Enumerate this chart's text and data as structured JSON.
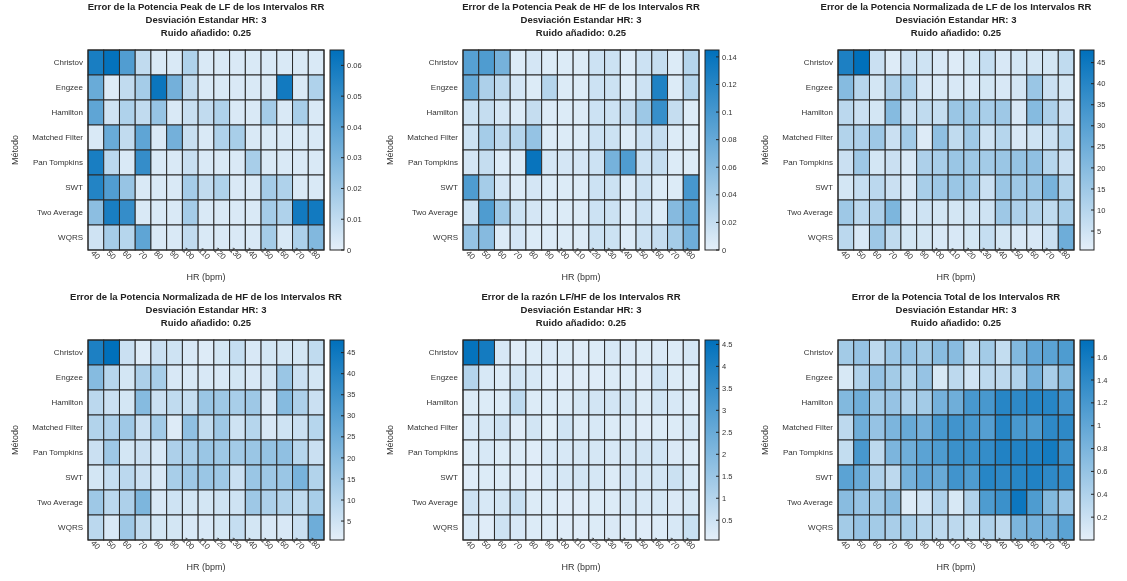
{
  "chart_data": [
    {
      "type": "heatmap",
      "title": "Error de la Potencia Peak de LF de los Intervalos RR",
      "subtitle": "Desviación Estandar HR: 3",
      "annotations": [
        "Ruido añadido: 0.25"
      ],
      "xlabel": "HR (bpm)",
      "ylabel": "Método",
      "categories": [
        "40",
        "50",
        "60",
        "70",
        "80",
        "90",
        "100",
        "110",
        "120",
        "130",
        "140",
        "150",
        "160",
        "170",
        "180"
      ],
      "y_categories": [
        "Christov",
        "Engzee",
        "Hamilton",
        "Matched Filter",
        "Pan Tompkins",
        "SWT",
        "Two Average",
        "WQRS"
      ],
      "clim": [
        0,
        0.065
      ],
      "cticks": [
        0,
        0.01,
        0.02,
        0.03,
        0.04,
        0.05,
        0.06
      ],
      "cells": [
        [
          0.058,
          0.064,
          0.042,
          0.01,
          0.003,
          0.003,
          0.015,
          0.003,
          0.003,
          0.003,
          0.003,
          0.003,
          0.003,
          0.003,
          0.003
        ],
        [
          0.035,
          0.002,
          0.01,
          0.018,
          0.062,
          0.032,
          0.01,
          0.003,
          0.003,
          0.003,
          0.003,
          0.003,
          0.06,
          0.003,
          0.015
        ],
        [
          0.038,
          0.006,
          0.015,
          0.01,
          0.022,
          0.003,
          0.008,
          0.01,
          0.015,
          0.003,
          0.003,
          0.018,
          0.003,
          0.017,
          0.003
        ],
        [
          0.003,
          0.035,
          0.01,
          0.038,
          0.003,
          0.032,
          0.008,
          0.003,
          0.015,
          0.017,
          0.003,
          0.003,
          0.003,
          0.003,
          0.003
        ],
        [
          0.058,
          0.012,
          0.003,
          0.05,
          0.003,
          0.003,
          0.008,
          0.003,
          0.003,
          0.003,
          0.017,
          0.003,
          0.003,
          0.003,
          0.003
        ],
        [
          0.055,
          0.042,
          0.022,
          0.003,
          0.003,
          0.003,
          0.018,
          0.01,
          0.015,
          0.003,
          0.003,
          0.018,
          0.015,
          0.003,
          0.003
        ],
        [
          0.025,
          0.058,
          0.05,
          0.003,
          0.003,
          0.003,
          0.018,
          0.003,
          0.003,
          0.003,
          0.003,
          0.018,
          0.015,
          0.06,
          0.06
        ],
        [
          0.006,
          0.018,
          0.013,
          0.038,
          0.003,
          0.003,
          0.01,
          0.003,
          0.003,
          0.003,
          0.003,
          0.018,
          0.003,
          0.016,
          0.028
        ]
      ]
    },
    {
      "type": "heatmap",
      "title": "Error de la Potencia Peak de HF de los Intervalos RR",
      "subtitle": "Desviación Estandar HR: 3",
      "annotations": [
        "Ruido añadido: 0.25"
      ],
      "xlabel": "HR (bpm)",
      "ylabel": "Método",
      "categories": [
        "40",
        "50",
        "60",
        "70",
        "80",
        "90",
        "100",
        "110",
        "120",
        "130",
        "140",
        "150",
        "160",
        "170",
        "180"
      ],
      "y_categories": [
        "Christov",
        "Engzee",
        "Hamilton",
        "Matched Filter",
        "Pan Tompkins",
        "SWT",
        "Two Average",
        "WQRS"
      ],
      "clim": [
        0,
        0.145
      ],
      "cticks": [
        0,
        0.02,
        0.04,
        0.06,
        0.08,
        0.1,
        0.12,
        0.14
      ],
      "cells": [
        [
          0.09,
          0.095,
          0.07,
          0.005,
          0.01,
          0.005,
          0.005,
          0.005,
          0.015,
          0.015,
          0.005,
          0.015,
          0.02,
          0.005,
          0.03
        ],
        [
          0.08,
          0.035,
          0.025,
          0.01,
          0.005,
          0.03,
          0.005,
          0.005,
          0.015,
          0.015,
          0.005,
          0.015,
          0.125,
          0.005,
          0.03
        ],
        [
          0.015,
          0.02,
          0.01,
          0.005,
          0.02,
          0.005,
          0.005,
          0.005,
          0.015,
          0.015,
          0.02,
          0.045,
          0.11,
          0.02,
          0.005
        ],
        [
          0.015,
          0.04,
          0.025,
          0.03,
          0.05,
          0.005,
          0.005,
          0.005,
          0.015,
          0.015,
          0.005,
          0.015,
          0.02,
          0.005,
          0.005
        ],
        [
          0.01,
          0.02,
          0.005,
          0.005,
          0.14,
          0.01,
          0.01,
          0.01,
          0.015,
          0.07,
          0.095,
          0.015,
          0.02,
          0.005,
          0.005
        ],
        [
          0.095,
          0.04,
          0.01,
          0.005,
          0.01,
          0.005,
          0.005,
          0.005,
          0.015,
          0.015,
          0.005,
          0.015,
          0.005,
          0.005,
          0.1
        ],
        [
          0.015,
          0.095,
          0.045,
          0.015,
          0.01,
          0.005,
          0.005,
          0.005,
          0.015,
          0.015,
          0.005,
          0.015,
          0.005,
          0.06,
          0.085
        ],
        [
          0.05,
          0.06,
          0.005,
          0.01,
          0.005,
          0.005,
          0.005,
          0.005,
          0.015,
          0.015,
          0.005,
          0.015,
          0.02,
          0.04,
          0.075
        ]
      ]
    },
    {
      "type": "heatmap",
      "title": "Error de la Potencia Normalizada de LF de los Intervalos RR",
      "subtitle": "Desviación Estandar HR: 3",
      "annotations": [
        "Ruido añadido: 0.25"
      ],
      "xlabel": "HR (bpm)",
      "ylabel": "Método",
      "categories": [
        "40",
        "50",
        "60",
        "70",
        "80",
        "90",
        "100",
        "110",
        "120",
        "130",
        "140",
        "150",
        "160",
        "170",
        "180"
      ],
      "y_categories": [
        "Christov",
        "Engzee",
        "Hamilton",
        "Matched Filter",
        "Pan Tompkins",
        "SWT",
        "Two Average",
        "WQRS"
      ],
      "clim": [
        0.5,
        48
      ],
      "cticks": [
        5,
        10,
        15,
        20,
        25,
        30,
        35,
        40,
        45
      ],
      "cells": [
        [
          42,
          48,
          6,
          2,
          6,
          5,
          3,
          2,
          4,
          7,
          3,
          4,
          4,
          4,
          8
        ],
        [
          20,
          10,
          4,
          12,
          13,
          3,
          3,
          3,
          3,
          4,
          3,
          4,
          16,
          6,
          4
        ],
        [
          9,
          6,
          4,
          20,
          6,
          8,
          7,
          16,
          15,
          13,
          15,
          3,
          20,
          12,
          6
        ],
        [
          11,
          12,
          15,
          6,
          14,
          2,
          18,
          8,
          15,
          5,
          10,
          3,
          5,
          6,
          10
        ],
        [
          6,
          15,
          4,
          6,
          3,
          12,
          13,
          16,
          15,
          14,
          16,
          17,
          18,
          10,
          6
        ],
        [
          4,
          7,
          9,
          6,
          3,
          13,
          15,
          16,
          15,
          6,
          16,
          15,
          16,
          23,
          11
        ],
        [
          15,
          9,
          12,
          22,
          3,
          5,
          4,
          4,
          5,
          5,
          15,
          12,
          11,
          8,
          13
        ],
        [
          9,
          3,
          15,
          8,
          4,
          4,
          3,
          3,
          4,
          7,
          4,
          3,
          3,
          6,
          25
        ]
      ]
    },
    {
      "type": "heatmap",
      "title": "Error de la Potencia Normalizada de HF de los Intervalos RR",
      "subtitle": "Desviación Estandar HR: 3",
      "annotations": [
        "Ruido añadido: 0.25"
      ],
      "xlabel": "HR (bpm)",
      "ylabel": "Método",
      "categories": [
        "40",
        "50",
        "60",
        "70",
        "80",
        "90",
        "100",
        "110",
        "120",
        "130",
        "140",
        "150",
        "160",
        "170",
        "180"
      ],
      "y_categories": [
        "Christov",
        "Engzee",
        "Hamilton",
        "Matched Filter",
        "Pan Tompkins",
        "SWT",
        "Two Average",
        "WQRS"
      ],
      "clim": [
        0.5,
        48
      ],
      "cticks": [
        5,
        10,
        15,
        20,
        25,
        30,
        35,
        40,
        45
      ],
      "cells": [
        [
          42,
          48,
          6,
          2,
          6,
          5,
          3,
          2,
          4,
          7,
          3,
          4,
          4,
          4,
          8
        ],
        [
          20,
          10,
          4,
          12,
          13,
          3,
          3,
          3,
          3,
          4,
          3,
          4,
          16,
          6,
          4
        ],
        [
          9,
          6,
          4,
          20,
          6,
          8,
          7,
          16,
          15,
          13,
          15,
          3,
          20,
          12,
          6
        ],
        [
          11,
          12,
          15,
          6,
          14,
          2,
          18,
          8,
          15,
          5,
          10,
          3,
          5,
          6,
          10
        ],
        [
          6,
          15,
          4,
          6,
          3,
          12,
          13,
          16,
          15,
          14,
          16,
          17,
          18,
          10,
          6
        ],
        [
          4,
          7,
          9,
          6,
          3,
          13,
          15,
          16,
          15,
          6,
          16,
          15,
          16,
          23,
          11
        ],
        [
          15,
          9,
          12,
          22,
          3,
          5,
          4,
          4,
          5,
          5,
          15,
          12,
          11,
          8,
          13
        ],
        [
          9,
          3,
          15,
          8,
          4,
          4,
          3,
          3,
          4,
          7,
          4,
          3,
          3,
          6,
          25
        ]
      ]
    },
    {
      "type": "heatmap",
      "title": "Error de la razón LF/HF de los Intervalos RR",
      "subtitle": "Desviación Estandar HR: 3",
      "annotations": [
        "Ruido añadido: 0.25"
      ],
      "xlabel": "HR (bpm)",
      "ylabel": "Método",
      "categories": [
        "40",
        "50",
        "60",
        "70",
        "80",
        "90",
        "100",
        "110",
        "120",
        "130",
        "140",
        "150",
        "160",
        "170",
        "180"
      ],
      "y_categories": [
        "Christov",
        "Engzee",
        "Hamilton",
        "Matched Filter",
        "Pan Tompkins",
        "SWT",
        "Two Average",
        "WQRS"
      ],
      "clim": [
        0.05,
        4.6
      ],
      "cticks": [
        0.5,
        1,
        1.5,
        2,
        2.5,
        3,
        3.5,
        4,
        4.5
      ],
      "cells": [
        [
          4.5,
          4.2,
          0.3,
          0.15,
          0.2,
          0.25,
          0.2,
          0.15,
          0.2,
          0.3,
          0.25,
          0.2,
          0.25,
          0.2,
          0.35
        ],
        [
          1.0,
          0.3,
          0.2,
          0.4,
          0.3,
          0.15,
          0.15,
          0.15,
          0.15,
          0.2,
          0.2,
          0.15,
          0.5,
          0.2,
          0.2
        ],
        [
          0.2,
          0.2,
          0.2,
          0.8,
          0.2,
          0.2,
          0.2,
          0.35,
          0.4,
          0.4,
          0.4,
          0.2,
          0.45,
          0.3,
          0.2
        ],
        [
          0.3,
          0.35,
          0.5,
          0.15,
          0.4,
          0.1,
          0.45,
          0.2,
          0.3,
          0.2,
          0.25,
          0.15,
          0.2,
          0.2,
          0.35
        ],
        [
          0.2,
          0.3,
          0.2,
          0.2,
          0.15,
          0.3,
          0.3,
          0.35,
          0.35,
          0.3,
          0.35,
          0.4,
          0.45,
          0.25,
          0.2
        ],
        [
          0.15,
          0.2,
          0.2,
          0.15,
          0.15,
          0.3,
          0.35,
          0.4,
          0.35,
          0.2,
          0.4,
          0.35,
          0.4,
          0.55,
          0.3
        ],
        [
          0.5,
          0.3,
          0.4,
          0.6,
          0.2,
          0.2,
          0.15,
          0.15,
          0.2,
          0.2,
          0.35,
          0.3,
          0.35,
          0.25,
          0.35
        ],
        [
          0.3,
          0.15,
          0.5,
          0.3,
          0.2,
          0.2,
          0.15,
          0.15,
          0.2,
          0.25,
          0.2,
          0.15,
          0.2,
          0.3,
          0.6
        ]
      ]
    },
    {
      "type": "heatmap",
      "title": "Error de la Potencia Total de los Intervalos RR",
      "subtitle": "Desviación Estandar HR: 3",
      "annotations": [
        "Ruido añadido: 0.25"
      ],
      "xlabel": "HR (bpm)",
      "ylabel": "Método",
      "categories": [
        "40",
        "50",
        "60",
        "70",
        "80",
        "90",
        "100",
        "110",
        "120",
        "130",
        "140",
        "150",
        "160",
        "170",
        "180"
      ],
      "y_categories": [
        "Christov",
        "Engzee",
        "Hamilton",
        "Matched Filter",
        "Pan Tompkins",
        "SWT",
        "Two Average",
        "WQRS"
      ],
      "clim": [
        0,
        1.75
      ],
      "cticks": [
        0.2,
        0.4,
        0.6,
        0.8,
        1,
        1.2,
        1.4,
        1.6
      ],
      "cells": [
        [
          0.5,
          0.6,
          0.3,
          0.55,
          0.6,
          0.5,
          0.7,
          0.7,
          0.3,
          0.5,
          0.25,
          0.75,
          1.0,
          1.05,
          1.15
        ],
        [
          0.1,
          0.4,
          0.6,
          0.5,
          0.35,
          0.6,
          0.1,
          0.3,
          0.15,
          0.3,
          0.3,
          0.4,
          0.85,
          0.45,
          0.75
        ],
        [
          0.75,
          0.9,
          0.5,
          0.6,
          0.4,
          0.5,
          0.85,
          0.9,
          1.2,
          1.2,
          1.45,
          1.4,
          1.45,
          1.45,
          1.25
        ],
        [
          0.3,
          0.9,
          0.6,
          0.8,
          0.95,
          0.85,
          1.2,
          1.25,
          1.2,
          1.1,
          1.45,
          1.2,
          1.15,
          1.4,
          1.4
        ],
        [
          0.25,
          1.2,
          0.3,
          0.8,
          0.9,
          1.05,
          1.15,
          1.3,
          1.3,
          1.35,
          1.5,
          1.5,
          1.5,
          1.6,
          1.3
        ],
        [
          1.05,
          0.95,
          0.4,
          0.3,
          0.85,
          1.0,
          0.95,
          1.25,
          1.15,
          1.45,
          1.4,
          1.45,
          1.5,
          1.4,
          1.35
        ],
        [
          0.7,
          0.6,
          0.5,
          0.7,
          0.05,
          0.15,
          0.4,
          0.1,
          0.4,
          1.15,
          1.3,
          1.65,
          1.15,
          0.75,
          0.55
        ],
        [
          0.5,
          0.6,
          0.5,
          0.45,
          0.45,
          0.35,
          0.3,
          0.3,
          0.25,
          0.4,
          0.3,
          0.8,
          0.85,
          0.85,
          1.05
        ]
      ]
    }
  ]
}
